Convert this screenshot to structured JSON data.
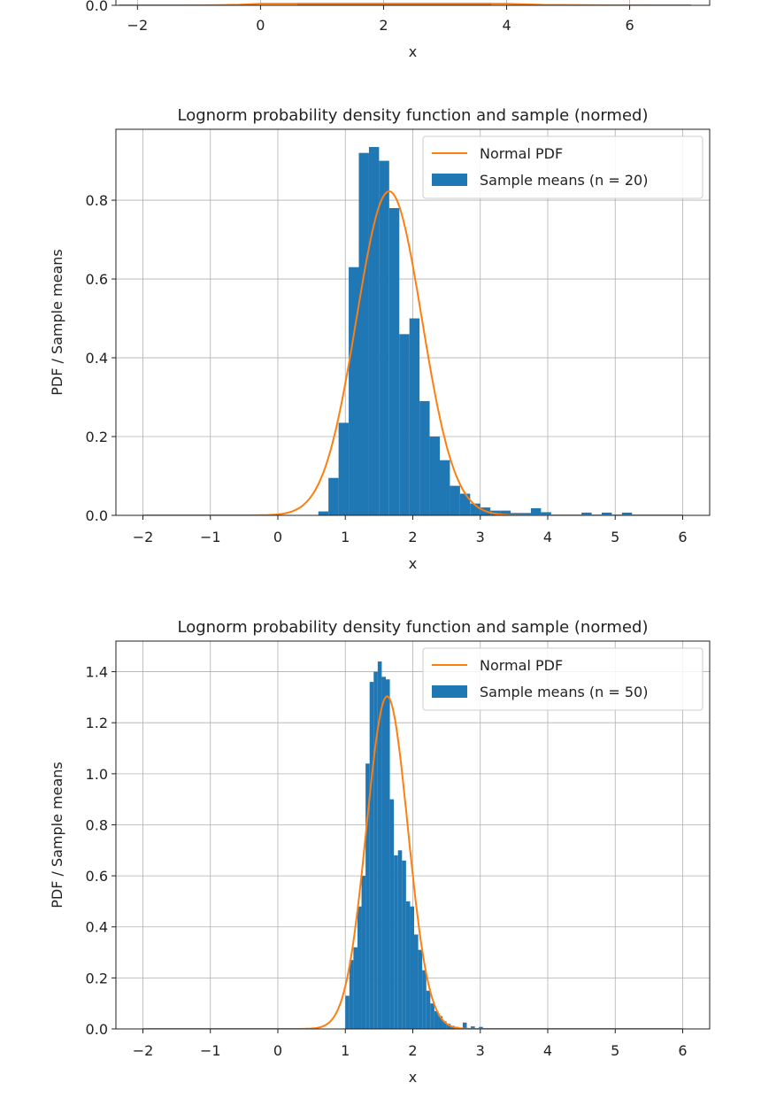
{
  "chart_data": [
    {
      "id": "top-partial",
      "type": "bar",
      "title": "",
      "xlabel": "x",
      "ylabel": "",
      "xlim": [
        -2.35,
        7.3
      ],
      "ylim": [
        0,
        1
      ],
      "xticks": [
        -2,
        0,
        2,
        4,
        6
      ],
      "xtick_labels": [
        "−2",
        "0",
        "2",
        "4",
        "6"
      ],
      "yticks": [
        0
      ],
      "ytick_labels": [
        "0.0"
      ],
      "grid": true,
      "series": [
        {
          "kind": "hist",
          "color": "#1f77b4",
          "bins": [
            {
              "x0": 0.6,
              "x1": 3.75,
              "y": 0.06
            },
            {
              "x0": 6.35,
              "x1": 6.55,
              "y": 0.006
            },
            {
              "x0": 6.75,
              "x1": 6.95,
              "y": 0.006
            }
          ]
        },
        {
          "kind": "line",
          "color": "#ff7f0e",
          "x": [
            -2.3,
            -1.5,
            -0.8,
            -0.35,
            0.0,
            4.0,
            4.6,
            5.5,
            7.0
          ],
          "y": [
            0.0,
            0.0,
            0.003,
            0.012,
            0.04,
            0.04,
            0.01,
            0.002,
            0.0
          ]
        }
      ]
    },
    {
      "id": "n20",
      "type": "bar",
      "title": "Lognorm probability density function and sample (normed)",
      "xlabel": "x",
      "ylabel": "PDF / Sample means",
      "xlim": [
        -2.4,
        6.4
      ],
      "ylim": [
        0,
        0.98
      ],
      "xticks": [
        -2,
        -1,
        0,
        1,
        2,
        3,
        4,
        5,
        6
      ],
      "xtick_labels": [
        "−2",
        "−1",
        "0",
        "1",
        "2",
        "3",
        "4",
        "5",
        "6"
      ],
      "yticks": [
        0,
        0.2,
        0.4,
        0.6,
        0.8
      ],
      "ytick_labels": [
        "0.0",
        "0.2",
        "0.4",
        "0.6",
        "0.8"
      ],
      "grid": true,
      "legend_position": "top-right",
      "legend": [
        {
          "label": "Normal PDF",
          "kind": "line",
          "color": "#ff7f0e"
        },
        {
          "label": "Sample means (n = 20)",
          "kind": "patch",
          "color": "#1f77b4"
        }
      ],
      "series": [
        {
          "name": "Sample means (n = 20)",
          "kind": "hist",
          "color": "#1f77b4",
          "bins": [
            {
              "x0": 0.6,
              "x1": 0.75,
              "y": 0.01
            },
            {
              "x0": 0.75,
              "x1": 0.9,
              "y": 0.095
            },
            {
              "x0": 0.9,
              "x1": 1.05,
              "y": 0.235
            },
            {
              "x0": 1.05,
              "x1": 1.2,
              "y": 0.63
            },
            {
              "x0": 1.2,
              "x1": 1.35,
              "y": 0.92
            },
            {
              "x0": 1.35,
              "x1": 1.5,
              "y": 0.935
            },
            {
              "x0": 1.5,
              "x1": 1.65,
              "y": 0.9
            },
            {
              "x0": 1.65,
              "x1": 1.8,
              "y": 0.78
            },
            {
              "x0": 1.8,
              "x1": 1.95,
              "y": 0.46
            },
            {
              "x0": 1.95,
              "x1": 2.1,
              "y": 0.5
            },
            {
              "x0": 2.1,
              "x1": 2.25,
              "y": 0.29
            },
            {
              "x0": 2.25,
              "x1": 2.4,
              "y": 0.2
            },
            {
              "x0": 2.4,
              "x1": 2.55,
              "y": 0.14
            },
            {
              "x0": 2.55,
              "x1": 2.7,
              "y": 0.075
            },
            {
              "x0": 2.7,
              "x1": 2.85,
              "y": 0.055
            },
            {
              "x0": 2.85,
              "x1": 3.0,
              "y": 0.03
            },
            {
              "x0": 3.0,
              "x1": 3.15,
              "y": 0.02
            },
            {
              "x0": 3.15,
              "x1": 3.3,
              "y": 0.012
            },
            {
              "x0": 3.3,
              "x1": 3.45,
              "y": 0.012
            },
            {
              "x0": 3.45,
              "x1": 3.6,
              "y": 0.006
            },
            {
              "x0": 3.6,
              "x1": 3.75,
              "y": 0.006
            },
            {
              "x0": 3.75,
              "x1": 3.9,
              "y": 0.018
            },
            {
              "x0": 3.9,
              "x1": 4.05,
              "y": 0.008
            },
            {
              "x0": 4.5,
              "x1": 4.65,
              "y": 0.007
            },
            {
              "x0": 4.8,
              "x1": 4.95,
              "y": 0.007
            },
            {
              "x0": 5.1,
              "x1": 5.25,
              "y": 0.007
            }
          ]
        },
        {
          "name": "Normal PDF",
          "kind": "normal_pdf",
          "color": "#ff7f0e",
          "mu": 1.65,
          "sigma": 0.485,
          "x_range": [
            -2,
            6
          ]
        }
      ]
    },
    {
      "id": "n50",
      "type": "bar",
      "title": "Lognorm probability density function and sample (normed)",
      "xlabel": "x",
      "ylabel": "PDF / Sample means",
      "xlim": [
        -2.4,
        6.4
      ],
      "ylim": [
        0,
        1.52
      ],
      "xticks": [
        -2,
        -1,
        0,
        1,
        2,
        3,
        4,
        5,
        6
      ],
      "xtick_labels": [
        "−2",
        "−1",
        "0",
        "1",
        "2",
        "3",
        "4",
        "5",
        "6"
      ],
      "yticks": [
        0,
        0.2,
        0.4,
        0.6,
        0.8,
        1.0,
        1.2,
        1.4
      ],
      "ytick_labels": [
        "0.0",
        "0.2",
        "0.4",
        "0.6",
        "0.8",
        "1.0",
        "1.2",
        "1.4"
      ],
      "grid": true,
      "legend_position": "top-right",
      "legend": [
        {
          "label": "Normal PDF",
          "kind": "line",
          "color": "#ff7f0e"
        },
        {
          "label": "Sample means (n = 50)",
          "kind": "patch",
          "color": "#1f77b4"
        }
      ],
      "series": [
        {
          "name": "Sample means (n = 50)",
          "kind": "hist",
          "color": "#1f77b4",
          "bins": [
            {
              "x0": 1.0,
              "x1": 1.06,
              "y": 0.13
            },
            {
              "x0": 1.06,
              "x1": 1.12,
              "y": 0.27
            },
            {
              "x0": 1.12,
              "x1": 1.18,
              "y": 0.32
            },
            {
              "x0": 1.18,
              "x1": 1.24,
              "y": 0.48
            },
            {
              "x0": 1.24,
              "x1": 1.3,
              "y": 0.6
            },
            {
              "x0": 1.3,
              "x1": 1.36,
              "y": 1.04
            },
            {
              "x0": 1.36,
              "x1": 1.42,
              "y": 1.36
            },
            {
              "x0": 1.42,
              "x1": 1.48,
              "y": 1.4
            },
            {
              "x0": 1.48,
              "x1": 1.54,
              "y": 1.44
            },
            {
              "x0": 1.54,
              "x1": 1.6,
              "y": 1.38
            },
            {
              "x0": 1.6,
              "x1": 1.66,
              "y": 1.37
            },
            {
              "x0": 1.66,
              "x1": 1.72,
              "y": 0.9
            },
            {
              "x0": 1.72,
              "x1": 1.78,
              "y": 0.68
            },
            {
              "x0": 1.78,
              "x1": 1.84,
              "y": 0.7
            },
            {
              "x0": 1.84,
              "x1": 1.9,
              "y": 0.66
            },
            {
              "x0": 1.9,
              "x1": 1.96,
              "y": 0.5
            },
            {
              "x0": 1.96,
              "x1": 2.02,
              "y": 0.48
            },
            {
              "x0": 2.02,
              "x1": 2.08,
              "y": 0.37
            },
            {
              "x0": 2.08,
              "x1": 2.14,
              "y": 0.31
            },
            {
              "x0": 2.14,
              "x1": 2.2,
              "y": 0.23
            },
            {
              "x0": 2.2,
              "x1": 2.26,
              "y": 0.15
            },
            {
              "x0": 2.26,
              "x1": 2.32,
              "y": 0.1
            },
            {
              "x0": 2.32,
              "x1": 2.38,
              "y": 0.07
            },
            {
              "x0": 2.38,
              "x1": 2.44,
              "y": 0.05
            },
            {
              "x0": 2.44,
              "x1": 2.5,
              "y": 0.03
            },
            {
              "x0": 2.5,
              "x1": 2.56,
              "y": 0.02
            },
            {
              "x0": 2.56,
              "x1": 2.62,
              "y": 0.012
            },
            {
              "x0": 2.62,
              "x1": 2.68,
              "y": 0.008
            },
            {
              "x0": 2.74,
              "x1": 2.8,
              "y": 0.025
            },
            {
              "x0": 2.86,
              "x1": 2.92,
              "y": 0.01
            },
            {
              "x0": 2.98,
              "x1": 3.04,
              "y": 0.008
            }
          ]
        },
        {
          "name": "Normal PDF",
          "kind": "normal_pdf",
          "color": "#ff7f0e",
          "mu": 1.62,
          "sigma": 0.306,
          "x_range": [
            -2,
            6
          ]
        }
      ]
    }
  ]
}
